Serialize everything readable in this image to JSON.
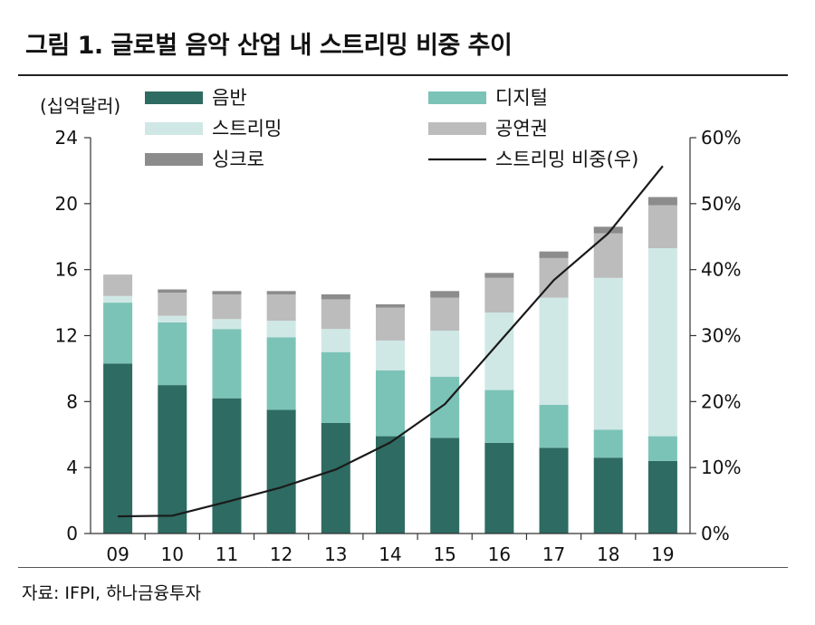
{
  "figure": {
    "title": "그림 1. 글로벌 음악 산업 내 스트리밍 비중 추이",
    "source": "자료: IFPI, 하나금융투자"
  },
  "chart_data": {
    "type": "bar",
    "stacked": true,
    "unit_label": "(십억달러)",
    "categories": [
      "09",
      "10",
      "11",
      "12",
      "13",
      "14",
      "15",
      "16",
      "17",
      "18",
      "19"
    ],
    "series": [
      {
        "name": "음반",
        "color": "#2e6b62",
        "values": [
          10.3,
          9.0,
          8.2,
          7.5,
          6.7,
          5.9,
          5.8,
          5.5,
          5.2,
          4.6,
          4.4
        ]
      },
      {
        "name": "디지털",
        "color": "#7cc3b7",
        "values": [
          3.7,
          3.8,
          4.2,
          4.4,
          4.3,
          4.0,
          3.7,
          3.2,
          2.6,
          1.7,
          1.5
        ]
      },
      {
        "name": "스트리밍",
        "color": "#cfe8e5",
        "values": [
          0.4,
          0.4,
          0.6,
          1.0,
          1.4,
          1.8,
          2.8,
          4.7,
          6.5,
          9.2,
          11.4
        ]
      },
      {
        "name": "공연권",
        "color": "#bcbcbc",
        "values": [
          1.3,
          1.4,
          1.5,
          1.6,
          1.8,
          2.0,
          2.0,
          2.1,
          2.4,
          2.7,
          2.6
        ]
      },
      {
        "name": "싱크로",
        "color": "#8c8c8c",
        "values": [
          0.0,
          0.2,
          0.2,
          0.2,
          0.3,
          0.2,
          0.4,
          0.3,
          0.4,
          0.4,
          0.5
        ]
      }
    ],
    "line_series": {
      "name": "스트리밍 비중(우)",
      "color": "#1a1a1a",
      "values": [
        2.6,
        2.7,
        4.8,
        7.0,
        9.7,
        13.8,
        19.6,
        29.0,
        38.4,
        45.5,
        55.7
      ]
    },
    "y_left": {
      "min": 0,
      "max": 24,
      "ticks": [
        "0",
        "4",
        "8",
        "12",
        "16",
        "20",
        "24"
      ]
    },
    "y_right": {
      "min": 0,
      "max": 60,
      "ticks": [
        "0%",
        "10%",
        "20%",
        "30%",
        "40%",
        "50%",
        "60%"
      ]
    },
    "grid": false,
    "legend": "top"
  }
}
